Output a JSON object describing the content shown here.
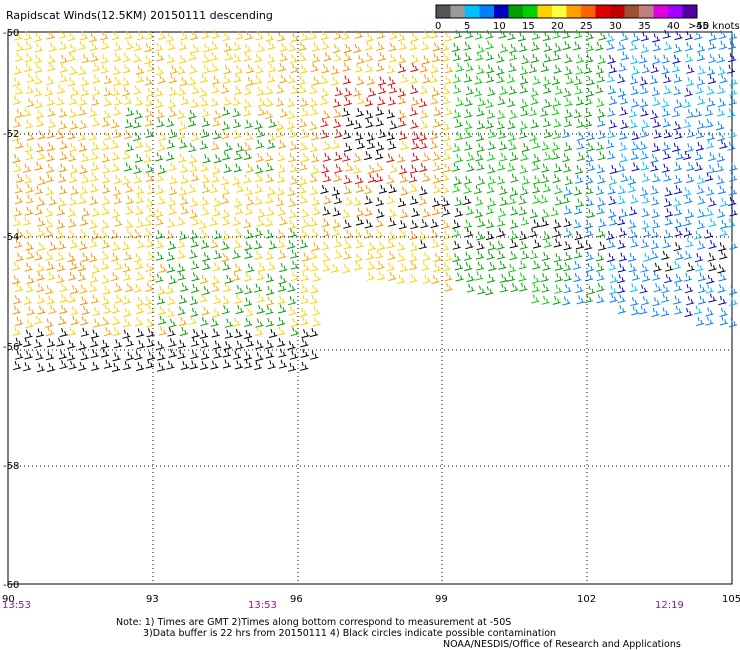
{
  "title": "Rapidscat Winds(12.5KM) 20150111 descending",
  "legend": {
    "unit": ">50 knots",
    "ticks": [
      "0",
      "5",
      "10",
      "15",
      "20",
      "25",
      "30",
      "35",
      "40",
      "45"
    ],
    "colors": [
      "#555555",
      "#999999",
      "#00bfff",
      "#0080ff",
      "#0000c0",
      "#00a000",
      "#00d000",
      "#ffd000",
      "#ffff40",
      "#ffa000",
      "#ff6000",
      "#e00000",
      "#c00000",
      "#a05030",
      "#c08080",
      "#e000e0",
      "#a000ff",
      "#5000a0"
    ]
  },
  "lat_labels": [
    "-50",
    "-52",
    "-54",
    "-56",
    "-58",
    "-60"
  ],
  "lon_labels": [
    "90",
    "93",
    "96",
    "99",
    "102",
    "105"
  ],
  "times": [
    "13:53",
    "13:53",
    "12:19"
  ],
  "notes": [
    "Note: 1) Times are GMT 2)Times along bottom correspond to measurement at -50S",
    "3)Data buffer is 22 hrs from 20150111 4) Black circles indicate possible contamination",
    "NOAA/NESDIS/Office of Research and Applications"
  ]
}
